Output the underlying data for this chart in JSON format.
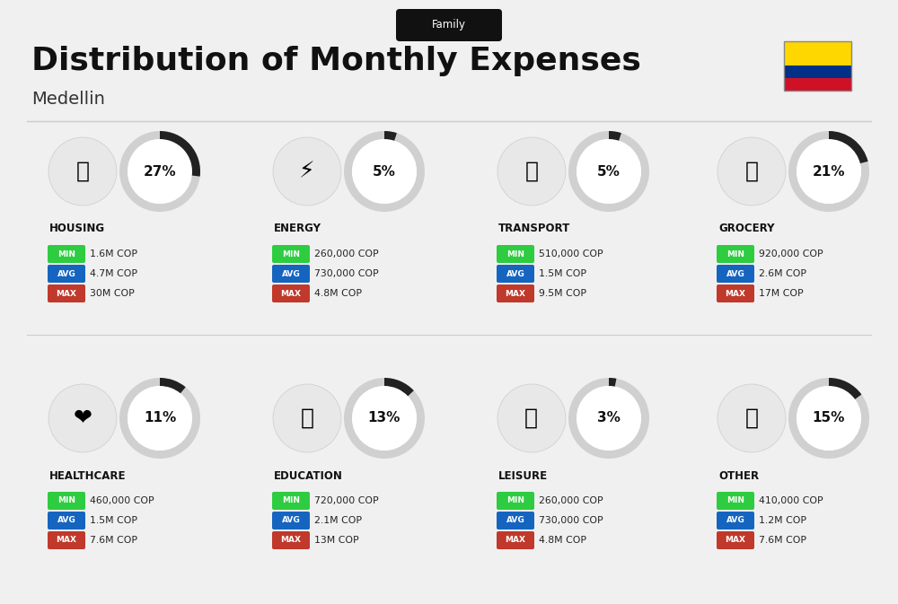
{
  "title": "Distribution of Monthly Expenses",
  "subtitle": "Family",
  "city": "Medellin",
  "bg_color": "#f0f0f0",
  "categories": [
    {
      "name": "HOUSING",
      "pct": 27,
      "min": "1.6M COP",
      "avg": "4.7M COP",
      "max": "30M COP",
      "row": 0,
      "col": 0
    },
    {
      "name": "ENERGY",
      "pct": 5,
      "min": "260,000 COP",
      "avg": "730,000 COP",
      "max": "4.8M COP",
      "row": 0,
      "col": 1
    },
    {
      "name": "TRANSPORT",
      "pct": 5,
      "min": "510,000 COP",
      "avg": "1.5M COP",
      "max": "9.5M COP",
      "row": 0,
      "col": 2
    },
    {
      "name": "GROCERY",
      "pct": 21,
      "min": "920,000 COP",
      "avg": "2.6M COP",
      "max": "17M COP",
      "row": 0,
      "col": 3
    },
    {
      "name": "HEALTHCARE",
      "pct": 11,
      "min": "460,000 COP",
      "avg": "1.5M COP",
      "max": "7.6M COP",
      "row": 1,
      "col": 0
    },
    {
      "name": "EDUCATION",
      "pct": 13,
      "min": "720,000 COP",
      "avg": "2.1M COP",
      "max": "13M COP",
      "row": 1,
      "col": 1
    },
    {
      "name": "LEISURE",
      "pct": 3,
      "min": "260,000 COP",
      "avg": "730,000 COP",
      "max": "4.8M COP",
      "row": 1,
      "col": 2
    },
    {
      "name": "OTHER",
      "pct": 15,
      "min": "410,000 COP",
      "avg": "1.2M COP",
      "max": "7.6M COP",
      "row": 1,
      "col": 3
    }
  ],
  "min_color": "#2ecc40",
  "avg_color": "#1565c0",
  "max_color": "#c0392b",
  "label_color": "#ffffff",
  "arc_color": "#555555",
  "arc_bg_color": "#e0e0e0",
  "text_color": "#111111",
  "pct_fontsize": 18,
  "name_fontsize": 10,
  "val_fontsize": 9,
  "colombia_yellow": "#FFD700",
  "colombia_blue": "#003087",
  "colombia_red": "#CE1126"
}
